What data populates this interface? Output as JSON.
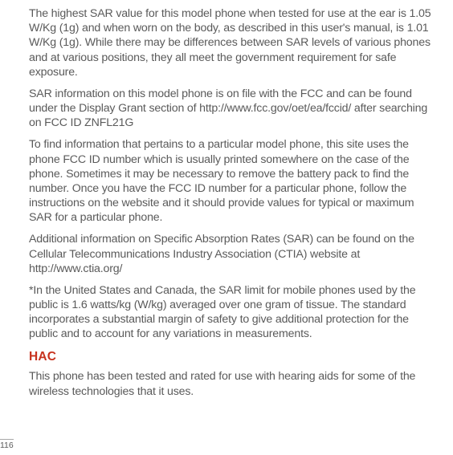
{
  "paragraphs": {
    "p1a": "The highest SAR value for this model phone when tested for use at the ear is ",
    "p1_sar_ear": "1.05",
    "p1b": " W/Kg (1g) and when worn on the body, as described in this user's manual, is ",
    "p1_sar_body": "1.01",
    "p1c": " W/Kg (1g). While there may be differences between SAR levels of various phones and at various positions, they all meet the government requirement for safe exposure.",
    "p2a": "SAR information on this model phone is on file with the FCC and can be found under the Display Grant section of http://www.fcc.gov/oet/ea/fccid/ after searching on FCC ID ",
    "p2_fccid": "ZNFL21G",
    "p3": "To find information that pertains to a particular model phone, this site uses the phone FCC ID number which is usually printed somewhere on the case of the phone. Sometimes it may be necessary to remove the battery pack to find the number. Once you have the FCC ID number for a particular phone, follow the instructions on the website and it should provide values for typical or maximum SAR for a particular phone.",
    "p4": "Additional information on Specific Absorption Rates (SAR) can be found on the Cellular Telecommunications Industry Association (CTIA) website at http://www.ctia.org/",
    "p5": "*In the United States and Canada, the SAR limit for mobile phones used by the public is 1.6 watts/kg (W/kg) averaged over one gram of tissue. The standard incorporates a substantial margin of safety to give additional protection for the public and to account for any variations in measurements.",
    "hac_heading": "HAC",
    "p6": "This phone has been tested and rated for use with hearing aids for some of the wireless technologies that it uses."
  },
  "page_number": "116",
  "colors": {
    "text": "#5a5a5a",
    "heading": "#c7321e",
    "background": "#ffffff"
  }
}
